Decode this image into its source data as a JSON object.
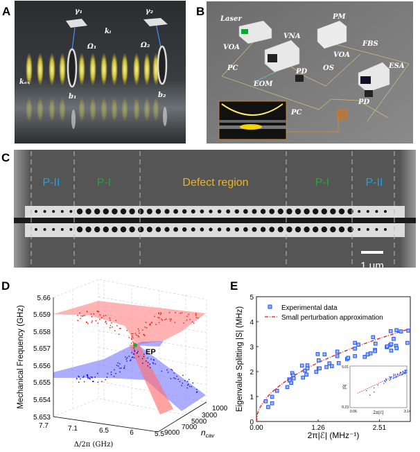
{
  "panels": {
    "a": "A",
    "b": "B",
    "c": "C",
    "d": "D",
    "e": "E"
  },
  "panel_a": {
    "gamma1": "γ₁",
    "gamma2": "γ₂",
    "k_i": "kᵢ",
    "omega1": "Ω₁",
    "omega2": "Ω₂",
    "k_ex": "kₑₓ",
    "b1": "b₁",
    "b2": "b₂"
  },
  "panel_b": {
    "laser": "Laser",
    "vna": "VNA",
    "pm": "PM",
    "voa_left": "VOA",
    "fbs": "FBS",
    "voa_right": "VOA",
    "pc_left": "PC",
    "os": "OS",
    "esa": "ESA",
    "pd_mid": "PD",
    "eom": "EOM",
    "pd_right": "PD",
    "pc_bottom": "PC"
  },
  "panel_c": {
    "regions": [
      {
        "label": "P-II",
        "color": "#1aa3e8"
      },
      {
        "label": "P-I",
        "color": "#1fa83c"
      },
      {
        "label": "Defect region",
        "color": "#f2b21a"
      },
      {
        "label": "P-I",
        "color": "#1fa83c"
      },
      {
        "label": "P-II",
        "color": "#1aa3e8"
      }
    ],
    "scale_bar": "1 μm"
  },
  "panel_d": {
    "ylabel": "Mechanical Frequency (GHz)",
    "yticks": [
      "5.66",
      "5.659",
      "5.658",
      "5.657",
      "5.656",
      "5.655",
      "5.654",
      "5.653"
    ],
    "xlabel": "Δ/2π (GHz)",
    "xticks": [
      "7.7",
      "7.1",
      "6.5",
      "6",
      "5.5"
    ],
    "zlabel_main": "n",
    "zlabel_sub": "cav",
    "zticks": [
      "1000",
      "3000",
      "5000",
      "7000",
      "9000"
    ],
    "ep_label": "EP",
    "colors": {
      "upper": "#ff0000",
      "lower": "#0000ff",
      "ep": "#22aa22"
    }
  },
  "chart_data": {
    "type": "scatter",
    "xlabel": "2π|ℰ| (MHz⁻¹)",
    "ylabel": "Eigenvalue Splitting |S| (MHz)",
    "xlim": [
      0,
      3.14
    ],
    "ylim": [
      0,
      5
    ],
    "xticks": [
      "0.00",
      "1.26",
      "2.51"
    ],
    "yticks": [
      "0",
      "1",
      "2",
      "3",
      "4",
      "5"
    ],
    "legend_position": "top-left",
    "series": [
      {
        "name": "Experimental data",
        "color": "#2255ee",
        "x": [
          0.19,
          0.24,
          0.32,
          0.32,
          0.42,
          0.63,
          0.67,
          0.68,
          0.71,
          0.73,
          0.75,
          0.76,
          0.93,
          0.95,
          0.99,
          1.02,
          1.04,
          1.04,
          1.22,
          1.25,
          1.27,
          1.27,
          1.29,
          1.39,
          1.43,
          1.49,
          1.54,
          1.65,
          1.65,
          1.68,
          1.85,
          1.87,
          2.01,
          2.01,
          2.01,
          2.08,
          2.21,
          2.27,
          2.33,
          2.38,
          2.42,
          2.42,
          2.43,
          2.66,
          2.67,
          2.73,
          2.74,
          2.75,
          2.75,
          2.8,
          2.85,
          2.86,
          2.86,
          2.95,
          3.08,
          3.1
        ],
        "y": [
          0.81,
          0.58,
          0.99,
          0.73,
          1.23,
          1.38,
          1.69,
          1.64,
          1.55,
          1.94,
          1.85,
          1.73,
          2.24,
          1.76,
          2.04,
          1.88,
          2.25,
          2.13,
          1.99,
          2.7,
          2.45,
          2.13,
          2.13,
          2.69,
          2.18,
          2.33,
          2.22,
          2.8,
          2.62,
          2.34,
          2.5,
          2.55,
          2.62,
          3.15,
          2.92,
          3.08,
          2.59,
          2.69,
          2.73,
          3.38,
          2.87,
          2.82,
          3.12,
          2.98,
          3.01,
          3.06,
          3.62,
          3.1,
          2.84,
          3.31,
          3.03,
          2.94,
          3.66,
          3.61,
          3.15,
          3.64
        ]
      },
      {
        "name": "Small perturbation approximation",
        "color": "#ee1111",
        "style": "dash-dot",
        "x": [
          0.0,
          0.02,
          0.05,
          0.1,
          0.2,
          0.3,
          0.5,
          0.75,
          1.0,
          1.26,
          1.5,
          1.75,
          2.0,
          2.25,
          2.51,
          2.75,
          3.0,
          3.14
        ],
        "y": [
          0.0,
          0.3,
          0.47,
          0.66,
          0.94,
          1.15,
          1.48,
          1.82,
          2.1,
          2.36,
          2.57,
          2.78,
          2.97,
          3.15,
          3.33,
          3.48,
          3.64,
          3.72
        ]
      }
    ],
    "inset": {
      "xlabel": "2π|ℰ|",
      "ylabel": "|S|",
      "xticks": [
        "0.06",
        "3.14"
      ],
      "yticks": [
        "5.01",
        "0.23"
      ],
      "scale": "log"
    }
  }
}
